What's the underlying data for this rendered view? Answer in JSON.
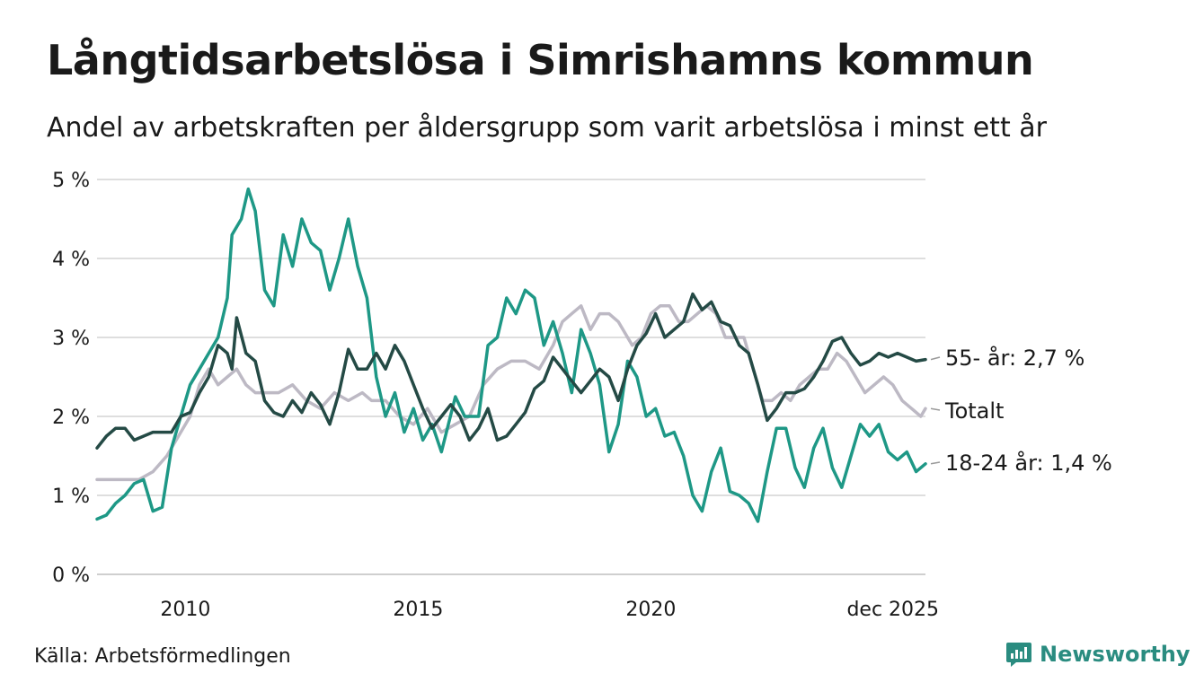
{
  "header": {
    "title": "Långtidsarbetslösa i Simrishamns kommun",
    "subtitle": "Andel av arbetskraften per åldersgrupp som varit arbetslösa i minst ett år"
  },
  "footer": {
    "source": "Källa: Arbetsförmedlingen",
    "brand": "Newsworthy",
    "brand_icon": "newsworthy-logo-icon"
  },
  "chart_data": {
    "type": "line",
    "title": "Långtidsarbetslösa i Simrishamns kommun",
    "xlabel": "",
    "ylabel": "",
    "xlim": [
      2008.1,
      2025.9
    ],
    "ylim": [
      0,
      5
    ],
    "grid": true,
    "y_ticks": [
      {
        "value": 0,
        "label": "0 %"
      },
      {
        "value": 1,
        "label": "1 %"
      },
      {
        "value": 2,
        "label": "2 %"
      },
      {
        "value": 3,
        "label": "3 %"
      },
      {
        "value": 4,
        "label": "4 %"
      },
      {
        "value": 5,
        "label": "5 %"
      }
    ],
    "x_ticks": [
      {
        "value": 2010,
        "label": "2010"
      },
      {
        "value": 2015,
        "label": "2015"
      },
      {
        "value": 2020,
        "label": "2020"
      },
      {
        "value": 2025.2,
        "label": "dec 2025"
      }
    ],
    "series": [
      {
        "name": "Totalt",
        "end_label": "Totalt",
        "color": "#bdb9c4",
        "points": [
          [
            2008.1,
            1.2
          ],
          [
            2008.6,
            1.2
          ],
          [
            2009.0,
            1.2
          ],
          [
            2009.3,
            1.3
          ],
          [
            2009.6,
            1.5
          ],
          [
            2009.9,
            1.8
          ],
          [
            2010.1,
            2.0
          ],
          [
            2010.3,
            2.4
          ],
          [
            2010.5,
            2.6
          ],
          [
            2010.7,
            2.4
          ],
          [
            2010.9,
            2.5
          ],
          [
            2011.1,
            2.6
          ],
          [
            2011.3,
            2.4
          ],
          [
            2011.5,
            2.3
          ],
          [
            2011.8,
            2.3
          ],
          [
            2012.0,
            2.3
          ],
          [
            2012.3,
            2.4
          ],
          [
            2012.6,
            2.2
          ],
          [
            2012.9,
            2.1
          ],
          [
            2013.2,
            2.3
          ],
          [
            2013.5,
            2.2
          ],
          [
            2013.8,
            2.3
          ],
          [
            2014.0,
            2.2
          ],
          [
            2014.3,
            2.2
          ],
          [
            2014.6,
            2.0
          ],
          [
            2014.9,
            1.9
          ],
          [
            2015.2,
            2.1
          ],
          [
            2015.5,
            1.8
          ],
          [
            2015.8,
            1.9
          ],
          [
            2016.1,
            2.0
          ],
          [
            2016.4,
            2.4
          ],
          [
            2016.7,
            2.6
          ],
          [
            2017.0,
            2.7
          ],
          [
            2017.3,
            2.7
          ],
          [
            2017.6,
            2.6
          ],
          [
            2017.9,
            2.9
          ],
          [
            2018.1,
            3.2
          ],
          [
            2018.3,
            3.3
          ],
          [
            2018.5,
            3.4
          ],
          [
            2018.7,
            3.1
          ],
          [
            2018.9,
            3.3
          ],
          [
            2019.1,
            3.3
          ],
          [
            2019.3,
            3.2
          ],
          [
            2019.6,
            2.9
          ],
          [
            2019.8,
            3.0
          ],
          [
            2020.0,
            3.3
          ],
          [
            2020.2,
            3.4
          ],
          [
            2020.4,
            3.4
          ],
          [
            2020.6,
            3.2
          ],
          [
            2020.8,
            3.2
          ],
          [
            2021.0,
            3.3
          ],
          [
            2021.2,
            3.4
          ],
          [
            2021.4,
            3.3
          ],
          [
            2021.6,
            3.0
          ],
          [
            2021.8,
            3.0
          ],
          [
            2022.0,
            3.0
          ],
          [
            2022.2,
            2.6
          ],
          [
            2022.4,
            2.2
          ],
          [
            2022.6,
            2.2
          ],
          [
            2022.8,
            2.3
          ],
          [
            2023.0,
            2.2
          ],
          [
            2023.2,
            2.4
          ],
          [
            2023.4,
            2.5
          ],
          [
            2023.6,
            2.6
          ],
          [
            2023.8,
            2.6
          ],
          [
            2024.0,
            2.8
          ],
          [
            2024.2,
            2.7
          ],
          [
            2024.4,
            2.5
          ],
          [
            2024.6,
            2.3
          ],
          [
            2024.8,
            2.4
          ],
          [
            2025.0,
            2.5
          ],
          [
            2025.2,
            2.4
          ],
          [
            2025.4,
            2.2
          ],
          [
            2025.6,
            2.1
          ],
          [
            2025.8,
            2.0
          ],
          [
            2025.9,
            2.1
          ]
        ]
      },
      {
        "name": "18-24 år",
        "end_label": "18-24 år: 1,4 %",
        "color": "#1e9886",
        "points": [
          [
            2008.1,
            0.7
          ],
          [
            2008.3,
            0.75
          ],
          [
            2008.5,
            0.9
          ],
          [
            2008.7,
            1.0
          ],
          [
            2008.9,
            1.15
          ],
          [
            2009.1,
            1.2
          ],
          [
            2009.3,
            0.8
          ],
          [
            2009.5,
            0.85
          ],
          [
            2009.7,
            1.6
          ],
          [
            2009.9,
            2.0
          ],
          [
            2010.1,
            2.4
          ],
          [
            2010.3,
            2.6
          ],
          [
            2010.5,
            2.8
          ],
          [
            2010.7,
            3.0
          ],
          [
            2010.9,
            3.5
          ],
          [
            2011.0,
            4.3
          ],
          [
            2011.2,
            4.5
          ],
          [
            2011.35,
            4.88
          ],
          [
            2011.5,
            4.6
          ],
          [
            2011.7,
            3.6
          ],
          [
            2011.9,
            3.4
          ],
          [
            2012.1,
            4.3
          ],
          [
            2012.3,
            3.9
          ],
          [
            2012.5,
            4.5
          ],
          [
            2012.7,
            4.2
          ],
          [
            2012.9,
            4.1
          ],
          [
            2013.1,
            3.6
          ],
          [
            2013.3,
            4.0
          ],
          [
            2013.5,
            4.5
          ],
          [
            2013.7,
            3.9
          ],
          [
            2013.9,
            3.5
          ],
          [
            2014.1,
            2.5
          ],
          [
            2014.3,
            2.0
          ],
          [
            2014.5,
            2.3
          ],
          [
            2014.7,
            1.8
          ],
          [
            2014.9,
            2.1
          ],
          [
            2015.1,
            1.7
          ],
          [
            2015.3,
            1.9
          ],
          [
            2015.5,
            1.55
          ],
          [
            2015.8,
            2.25
          ],
          [
            2016.0,
            2.0
          ],
          [
            2016.3,
            2.0
          ],
          [
            2016.5,
            2.9
          ],
          [
            2016.7,
            3.0
          ],
          [
            2016.9,
            3.5
          ],
          [
            2017.1,
            3.3
          ],
          [
            2017.3,
            3.6
          ],
          [
            2017.5,
            3.5
          ],
          [
            2017.7,
            2.9
          ],
          [
            2017.9,
            3.2
          ],
          [
            2018.1,
            2.8
          ],
          [
            2018.3,
            2.3
          ],
          [
            2018.5,
            3.1
          ],
          [
            2018.7,
            2.8
          ],
          [
            2018.9,
            2.4
          ],
          [
            2019.1,
            1.55
          ],
          [
            2019.3,
            1.9
          ],
          [
            2019.5,
            2.7
          ],
          [
            2019.7,
            2.5
          ],
          [
            2019.9,
            2.0
          ],
          [
            2020.1,
            2.1
          ],
          [
            2020.3,
            1.75
          ],
          [
            2020.5,
            1.8
          ],
          [
            2020.7,
            1.5
          ],
          [
            2020.9,
            1.0
          ],
          [
            2021.1,
            0.8
          ],
          [
            2021.3,
            1.3
          ],
          [
            2021.5,
            1.6
          ],
          [
            2021.7,
            1.05
          ],
          [
            2021.9,
            1.0
          ],
          [
            2022.1,
            0.9
          ],
          [
            2022.3,
            0.67
          ],
          [
            2022.5,
            1.3
          ],
          [
            2022.7,
            1.85
          ],
          [
            2022.9,
            1.85
          ],
          [
            2023.1,
            1.35
          ],
          [
            2023.3,
            1.1
          ],
          [
            2023.5,
            1.6
          ],
          [
            2023.7,
            1.85
          ],
          [
            2023.9,
            1.35
          ],
          [
            2024.1,
            1.1
          ],
          [
            2024.3,
            1.5
          ],
          [
            2024.5,
            1.9
          ],
          [
            2024.7,
            1.75
          ],
          [
            2024.9,
            1.9
          ],
          [
            2025.1,
            1.55
          ],
          [
            2025.3,
            1.45
          ],
          [
            2025.5,
            1.55
          ],
          [
            2025.7,
            1.3
          ],
          [
            2025.9,
            1.4
          ]
        ]
      },
      {
        "name": "55- år",
        "end_label": "55- år: 2,7 %",
        "color": "#244a45",
        "points": [
          [
            2008.1,
            1.6
          ],
          [
            2008.3,
            1.75
          ],
          [
            2008.5,
            1.85
          ],
          [
            2008.7,
            1.85
          ],
          [
            2008.9,
            1.7
          ],
          [
            2009.1,
            1.75
          ],
          [
            2009.3,
            1.8
          ],
          [
            2009.5,
            1.8
          ],
          [
            2009.7,
            1.8
          ],
          [
            2009.9,
            2.0
          ],
          [
            2010.1,
            2.05
          ],
          [
            2010.3,
            2.3
          ],
          [
            2010.5,
            2.5
          ],
          [
            2010.7,
            2.9
          ],
          [
            2010.9,
            2.8
          ],
          [
            2011.0,
            2.6
          ],
          [
            2011.1,
            3.25
          ],
          [
            2011.3,
            2.8
          ],
          [
            2011.5,
            2.7
          ],
          [
            2011.7,
            2.2
          ],
          [
            2011.9,
            2.05
          ],
          [
            2012.1,
            2.0
          ],
          [
            2012.3,
            2.2
          ],
          [
            2012.5,
            2.05
          ],
          [
            2012.7,
            2.3
          ],
          [
            2012.9,
            2.15
          ],
          [
            2013.1,
            1.9
          ],
          [
            2013.3,
            2.3
          ],
          [
            2013.5,
            2.85
          ],
          [
            2013.7,
            2.6
          ],
          [
            2013.9,
            2.6
          ],
          [
            2014.1,
            2.8
          ],
          [
            2014.3,
            2.6
          ],
          [
            2014.5,
            2.9
          ],
          [
            2014.7,
            2.7
          ],
          [
            2014.9,
            2.4
          ],
          [
            2015.1,
            2.1
          ],
          [
            2015.3,
            1.85
          ],
          [
            2015.5,
            2.0
          ],
          [
            2015.7,
            2.15
          ],
          [
            2015.9,
            2.0
          ],
          [
            2016.1,
            1.7
          ],
          [
            2016.3,
            1.85
          ],
          [
            2016.5,
            2.1
          ],
          [
            2016.7,
            1.7
          ],
          [
            2016.9,
            1.75
          ],
          [
            2017.1,
            1.9
          ],
          [
            2017.3,
            2.05
          ],
          [
            2017.5,
            2.35
          ],
          [
            2017.7,
            2.45
          ],
          [
            2017.9,
            2.75
          ],
          [
            2018.1,
            2.6
          ],
          [
            2018.3,
            2.45
          ],
          [
            2018.5,
            2.3
          ],
          [
            2018.7,
            2.45
          ],
          [
            2018.9,
            2.6
          ],
          [
            2019.1,
            2.5
          ],
          [
            2019.3,
            2.2
          ],
          [
            2019.5,
            2.6
          ],
          [
            2019.7,
            2.9
          ],
          [
            2019.9,
            3.05
          ],
          [
            2020.1,
            3.3
          ],
          [
            2020.3,
            3.0
          ],
          [
            2020.5,
            3.1
          ],
          [
            2020.7,
            3.2
          ],
          [
            2020.9,
            3.55
          ],
          [
            2021.1,
            3.35
          ],
          [
            2021.3,
            3.45
          ],
          [
            2021.5,
            3.2
          ],
          [
            2021.7,
            3.15
          ],
          [
            2021.9,
            2.9
          ],
          [
            2022.1,
            2.8
          ],
          [
            2022.3,
            2.4
          ],
          [
            2022.5,
            1.95
          ],
          [
            2022.7,
            2.1
          ],
          [
            2022.9,
            2.3
          ],
          [
            2023.1,
            2.3
          ],
          [
            2023.3,
            2.35
          ],
          [
            2023.5,
            2.5
          ],
          [
            2023.7,
            2.7
          ],
          [
            2023.9,
            2.95
          ],
          [
            2024.1,
            3.0
          ],
          [
            2024.3,
            2.8
          ],
          [
            2024.5,
            2.65
          ],
          [
            2024.7,
            2.7
          ],
          [
            2024.9,
            2.8
          ],
          [
            2025.1,
            2.75
          ],
          [
            2025.3,
            2.8
          ],
          [
            2025.5,
            2.75
          ],
          [
            2025.7,
            2.7
          ],
          [
            2025.9,
            2.72
          ]
        ]
      }
    ]
  }
}
